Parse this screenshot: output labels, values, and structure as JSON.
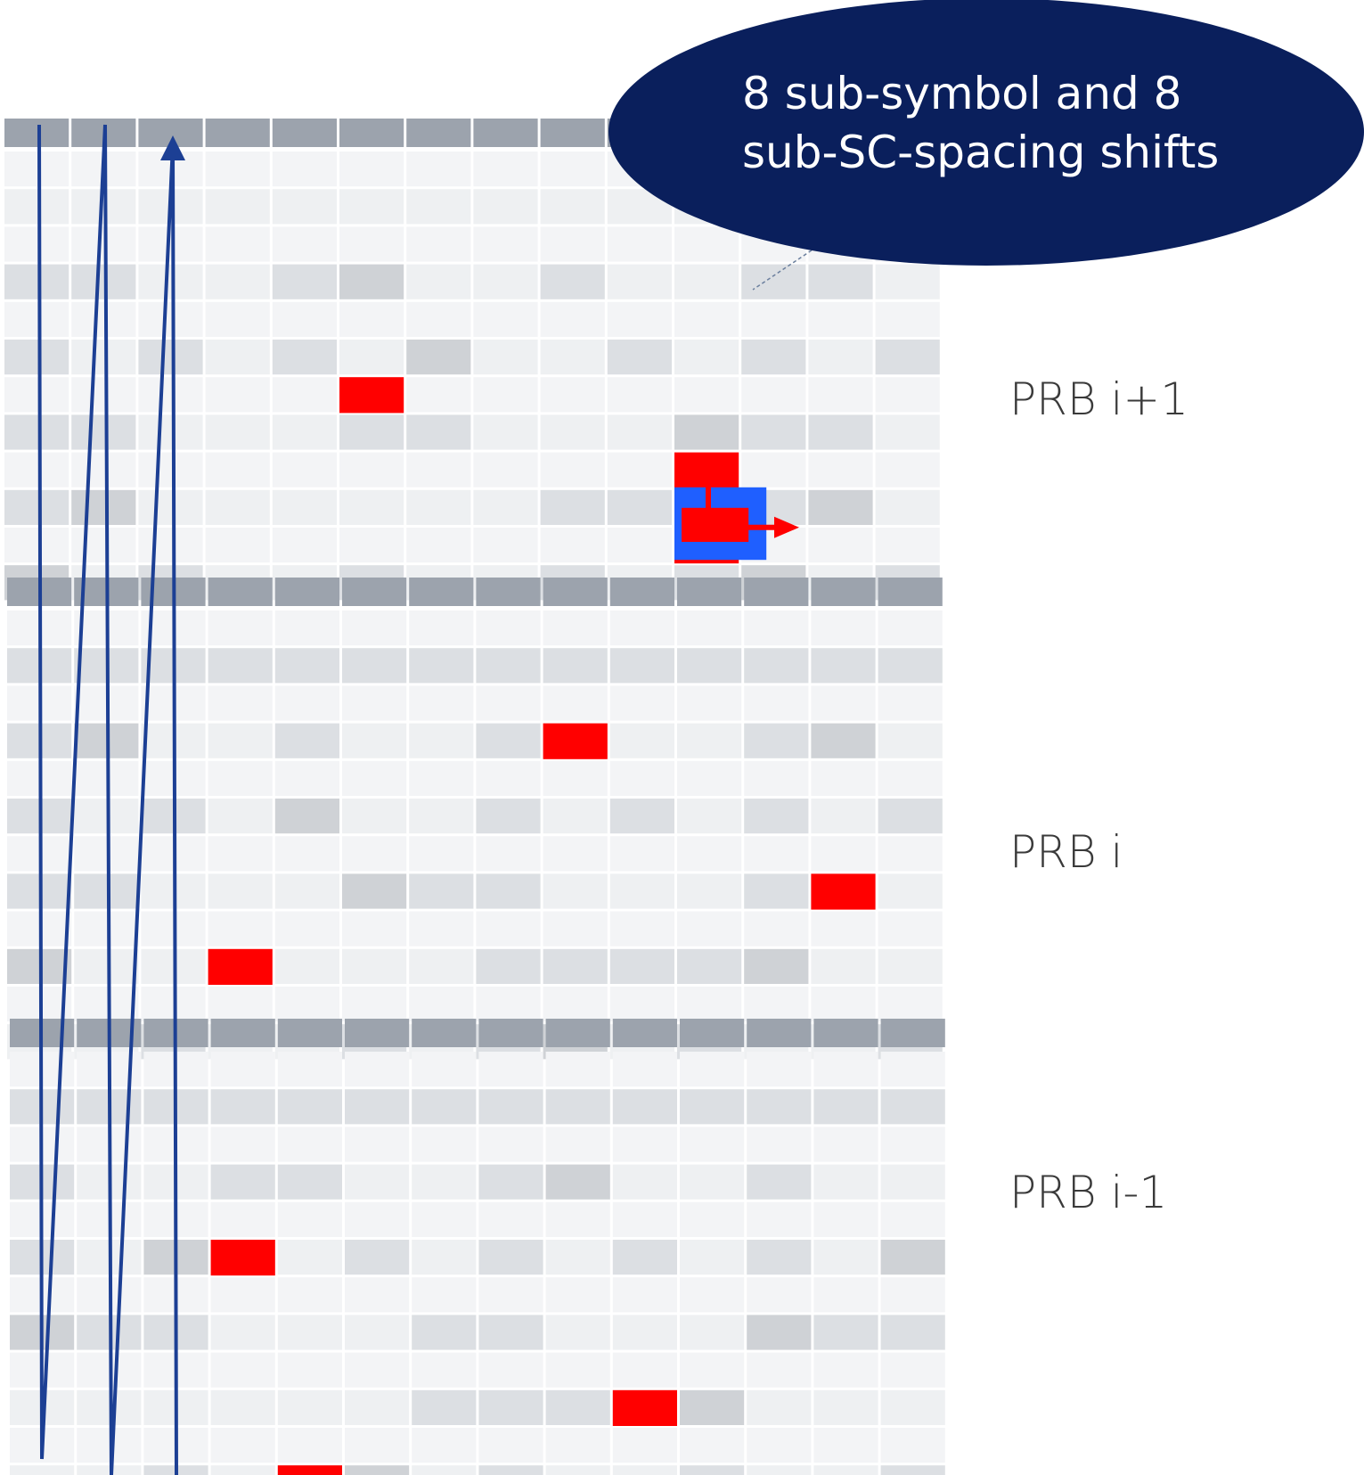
{
  "diagram": {
    "callout": {
      "line1": "8 sub-symbol and 8",
      "line2": "sub-SC-spacing shifts"
    },
    "prb_labels": [
      "PRB i+1",
      "PRB i",
      "PRB i-1"
    ],
    "grid": {
      "prbs": 3,
      "symbols_per_prb": 14,
      "subcarriers_per_prb": 12
    },
    "highlighted_res": [
      {
        "prb": 0,
        "subcarrier": 1,
        "symbol": 10
      },
      {
        "prb": 0,
        "subcarrier": 3,
        "symbol": 10
      },
      {
        "prb": 0,
        "subcarrier": 5,
        "symbol": 5
      },
      {
        "prb": 1,
        "subcarrier": 2,
        "symbol": 3
      },
      {
        "prb": 1,
        "subcarrier": 4,
        "symbol": 12
      },
      {
        "prb": 1,
        "subcarrier": 8,
        "symbol": 8
      },
      {
        "prb": 2,
        "subcarrier": 0,
        "symbol": 4
      },
      {
        "prb": 2,
        "subcarrier": 2,
        "symbol": 9
      },
      {
        "prb": 2,
        "subcarrier": 6,
        "symbol": 3
      }
    ],
    "shift_indicator_re": {
      "prb": 0,
      "subcarrier": 1,
      "symbol": 10
    },
    "colors": {
      "highlight": "#ff0000",
      "shift_box": "#1f5fff",
      "callout_fill": "#0a1f5c",
      "scan_line": "#1c3f94",
      "header_row": "#9ca3ad",
      "cell_light": "#eef0f2",
      "cell_mid": "#dcdfe3",
      "cell_dark": "#cfd2d6"
    }
  }
}
